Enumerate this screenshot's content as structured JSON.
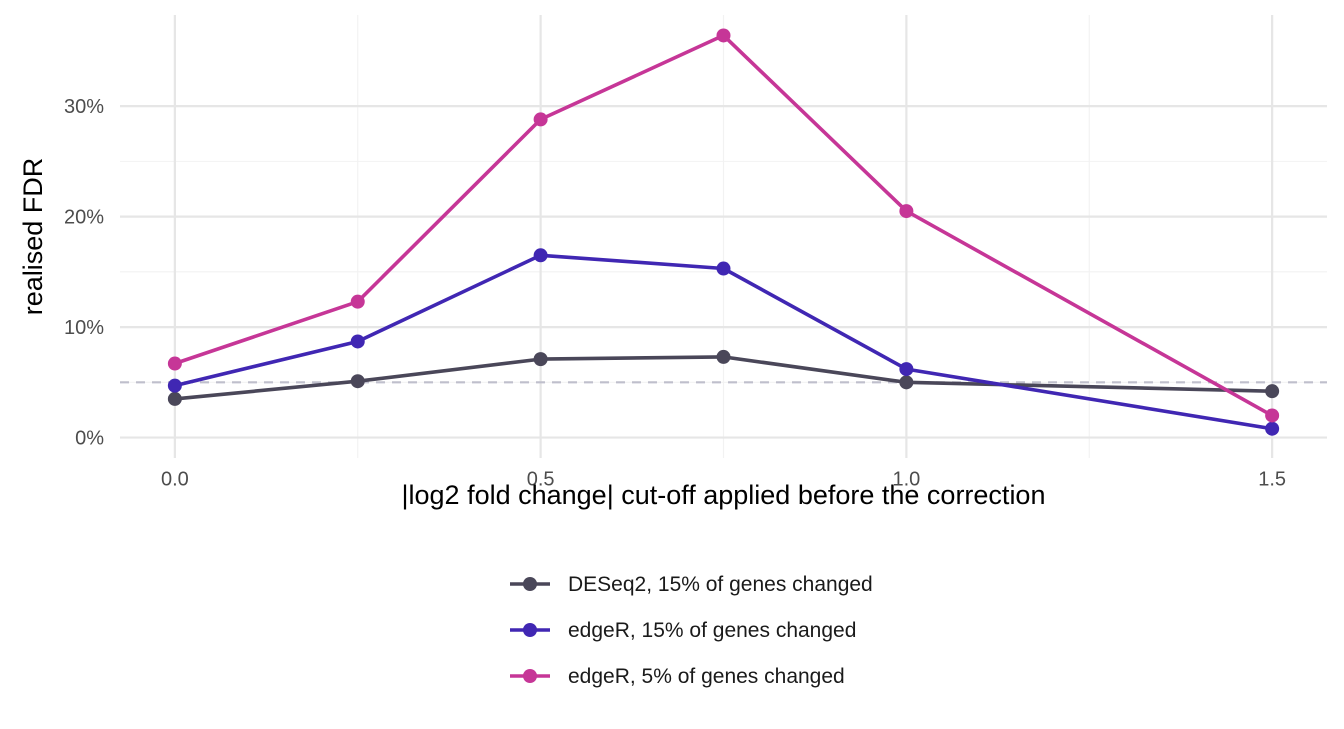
{
  "chart_data": {
    "type": "line",
    "title": "",
    "xlabel": "|log2 fold change| cut-off applied before the correction",
    "ylabel": "realised FDR",
    "x": [
      0.0,
      0.25,
      0.5,
      0.75,
      1.0,
      1.5
    ],
    "xlim": [
      -0.075,
      1.575
    ],
    "ylim": [
      -0.0185,
      0.3825
    ],
    "x_ticks": [
      0.0,
      0.5,
      1.0,
      1.5
    ],
    "x_tick_labels": [
      "0.0",
      "0.5",
      "1.0",
      "1.5"
    ],
    "y_ticks": [
      0.0,
      0.1,
      0.2,
      0.3
    ],
    "y_tick_labels": [
      "0%",
      "10%",
      "20%",
      "30%"
    ],
    "grid": true,
    "legend_position": "bottom",
    "reference_line": {
      "y": 0.05,
      "style": "dashed",
      "color": "#bfbfcc"
    },
    "series": [
      {
        "name": "DESeq2, 15% of genes changed",
        "color": "#4a4759",
        "values": [
          0.035,
          0.051,
          0.071,
          0.073,
          0.05,
          0.042
        ]
      },
      {
        "name": "edgeR, 15% of genes changed",
        "color": "#4027b3",
        "values": [
          0.047,
          0.087,
          0.165,
          0.153,
          0.062,
          0.008
        ]
      },
      {
        "name": "edgeR, 5% of genes changed",
        "color": "#c63697",
        "values": [
          0.067,
          0.123,
          0.288,
          0.364,
          0.205,
          0.02
        ]
      }
    ]
  }
}
